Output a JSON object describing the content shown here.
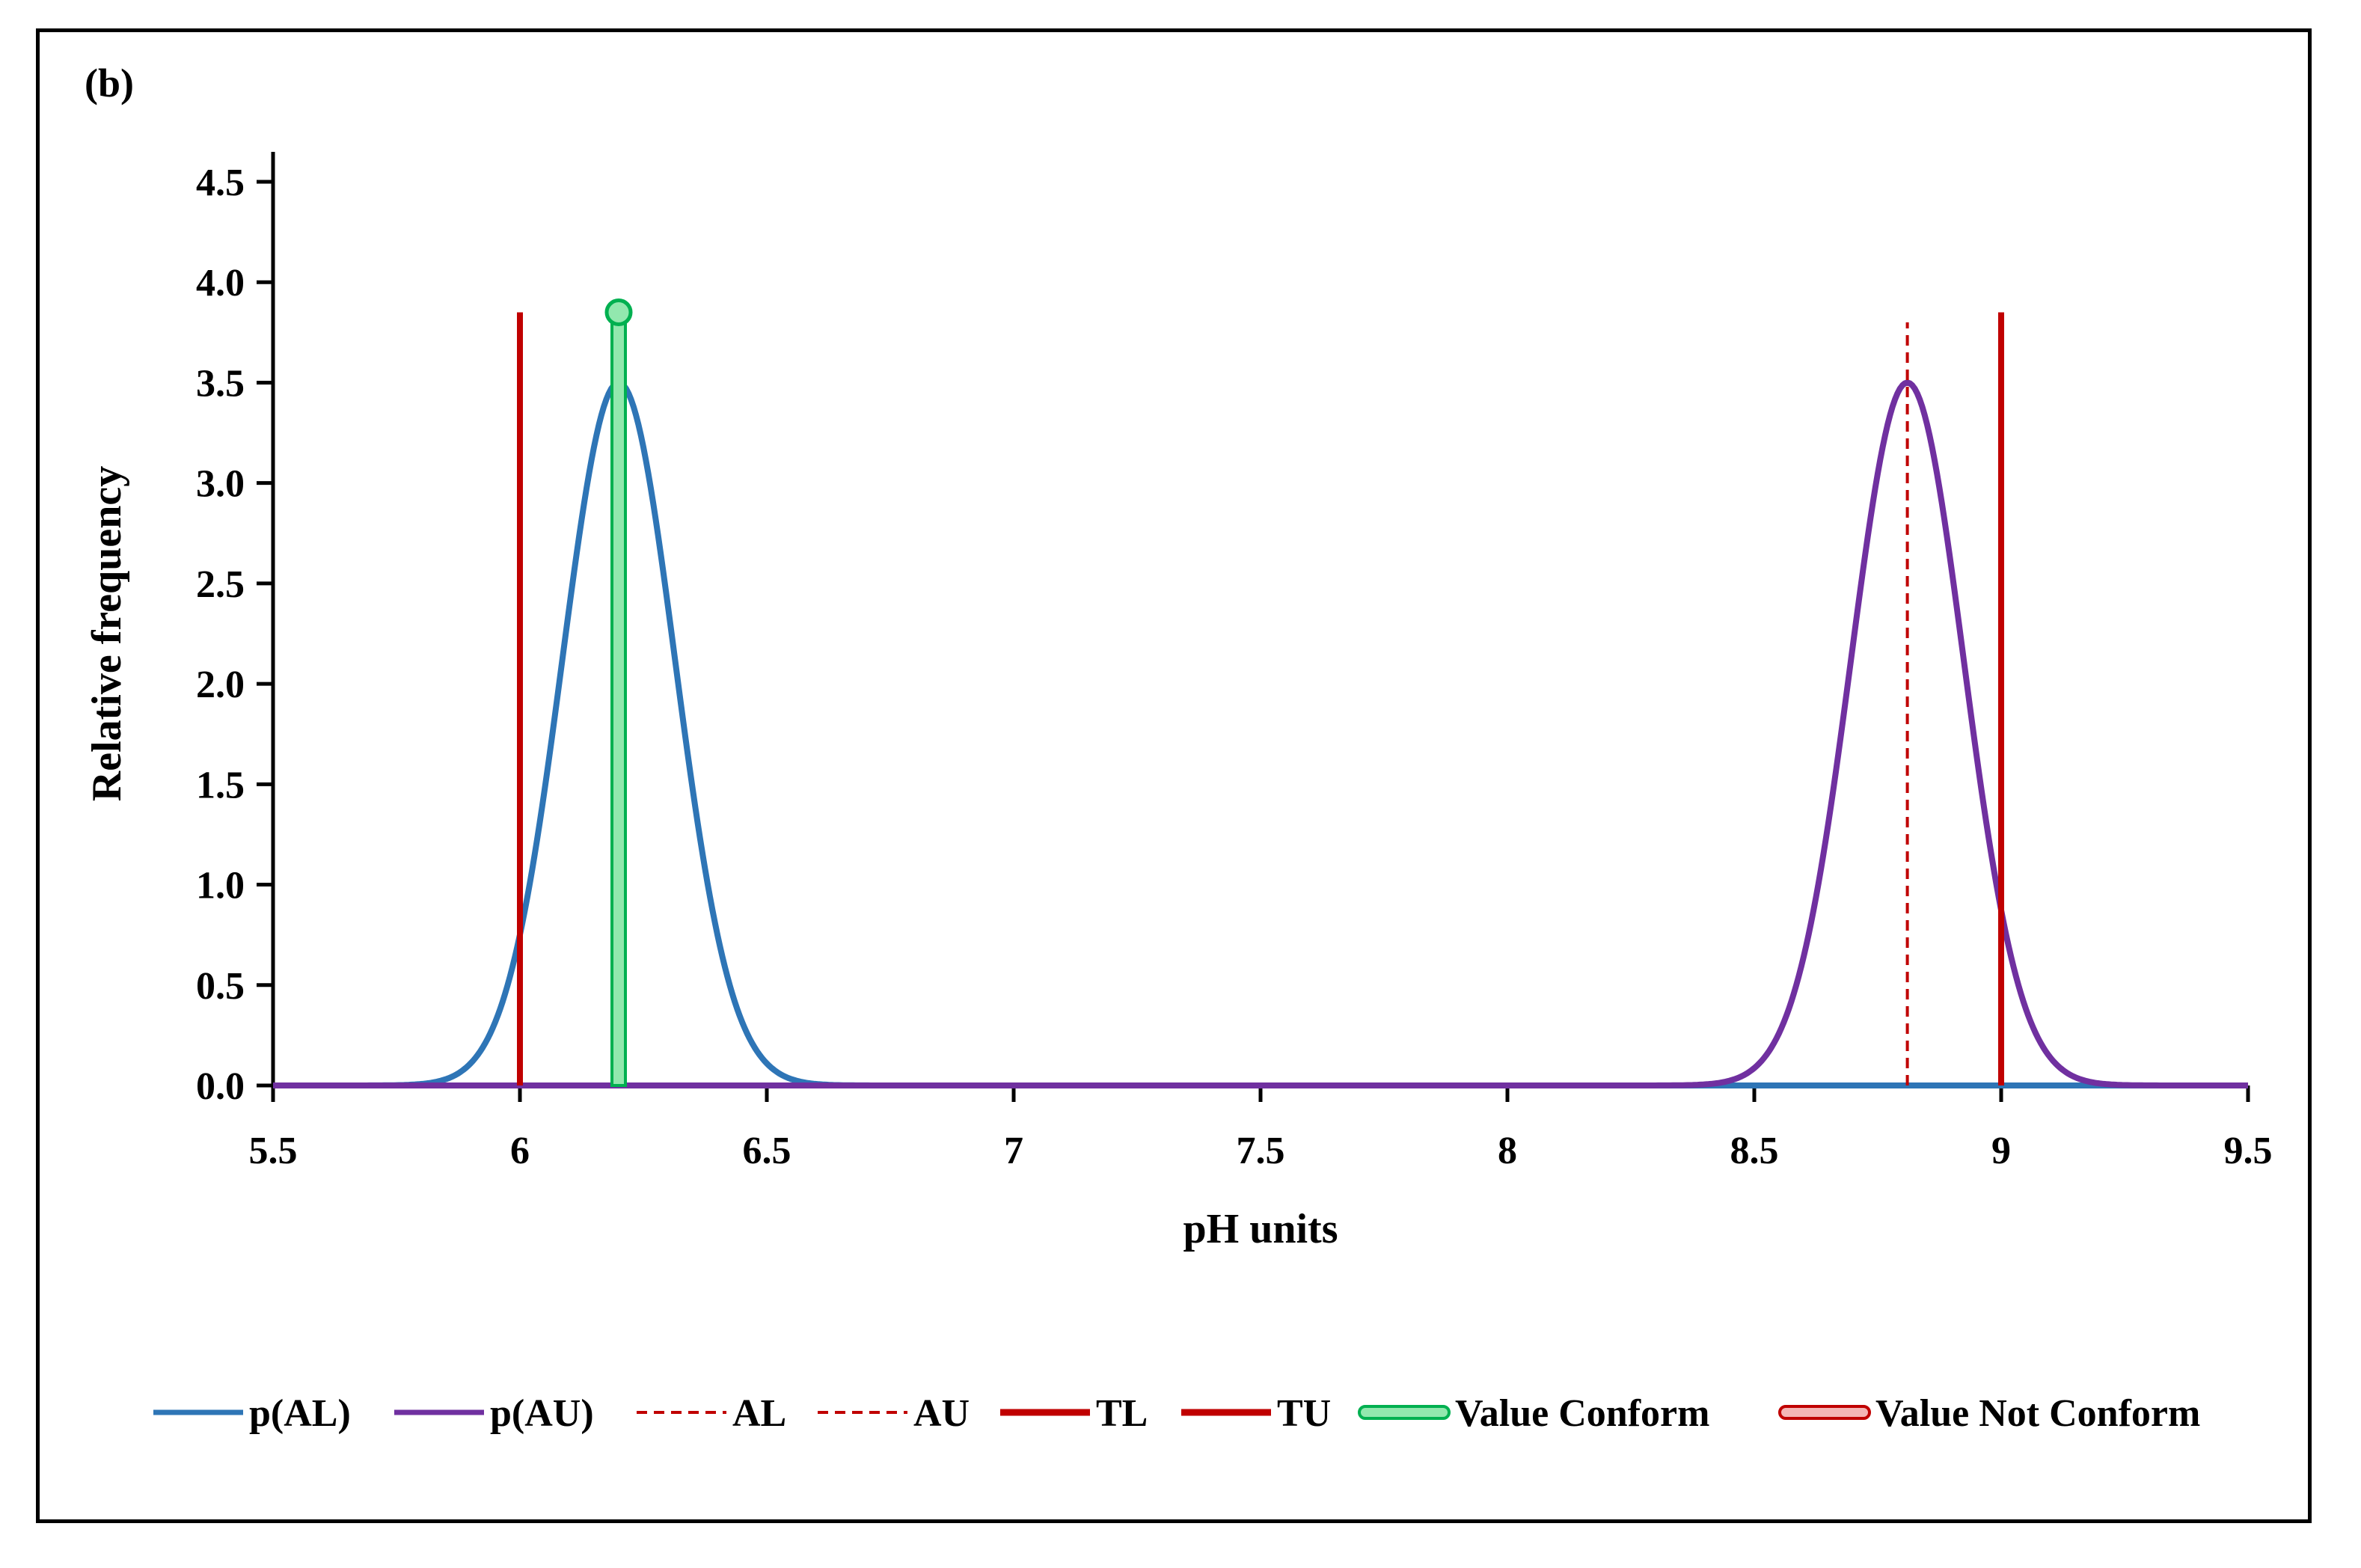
{
  "chart_data": {
    "type": "line",
    "panel_label": "(b)",
    "xlabel": "pH units",
    "ylabel": "Relative frequency",
    "xlim": [
      5.5,
      9.5
    ],
    "ylim": [
      0,
      4.5
    ],
    "x_ticks": [
      5.5,
      6,
      6.5,
      7,
      7.5,
      8,
      8.5,
      9,
      9.5
    ],
    "x_tick_labels": [
      "5.5",
      "6",
      "6.5",
      "7",
      "7.5",
      "8",
      "8.5",
      "9",
      "9.5"
    ],
    "y_ticks": [
      0,
      0.5,
      1,
      1.5,
      2,
      2.5,
      3,
      3.5,
      4,
      4.5
    ],
    "y_tick_labels": [
      "0.0",
      "0.5",
      "1.0",
      "1.5",
      "2.0",
      "2.5",
      "3.0",
      "3.5",
      "4.0",
      "4.5"
    ],
    "series": [
      {
        "name": "p(AL)",
        "kind": "normal",
        "mean": 6.2,
        "sd": 0.114,
        "peak": 3.5,
        "color": "#2E75B6"
      },
      {
        "name": "p(AU)",
        "kind": "normal",
        "mean": 8.81,
        "sd": 0.114,
        "peak": 3.5,
        "color": "#7030A0"
      },
      {
        "name": "AL",
        "kind": "vline",
        "x": 6.19,
        "y_top": 3.5,
        "color": "#C00000",
        "dashed": true
      },
      {
        "name": "AU",
        "kind": "vline",
        "x": 8.81,
        "y_top": 3.8,
        "color": "#C00000",
        "dashed": true
      },
      {
        "name": "TL",
        "kind": "vline",
        "x": 6.0,
        "y_top": 3.85,
        "color": "#C00000",
        "dashed": false
      },
      {
        "name": "TU",
        "kind": "vline",
        "x": 9.0,
        "y_top": 3.85,
        "color": "#C00000",
        "dashed": false
      },
      {
        "name": "Value Conform",
        "kind": "marker",
        "x": 6.2,
        "y": 3.85,
        "color": "#00B050",
        "fill": "#92E8AE"
      },
      {
        "name": "Value Not Conform",
        "kind": "marker",
        "x": null,
        "y": null,
        "color": "#C00000",
        "fill": "#F4B6B6"
      }
    ],
    "legend": [
      "p(AL)",
      "p(AU)",
      "AL",
      "AU",
      "TL",
      "TU",
      "Value Conform",
      "Value Not Conform"
    ],
    "legend_position": "bottom"
  }
}
